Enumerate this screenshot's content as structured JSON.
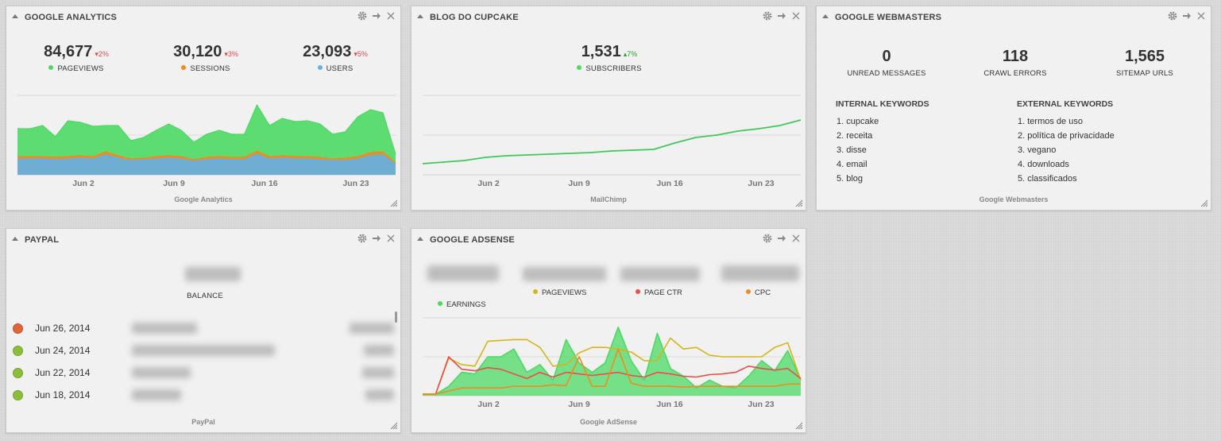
{
  "colors": {
    "green": "#4cd964",
    "green_line": "#3ec95a",
    "blue": "#62b1e5",
    "orange": "#f38a1e",
    "red": "#ef4b4b",
    "yellow": "#d4b51b",
    "pp_orange": "#e2633a",
    "pp_green": "#8bbf3a"
  },
  "icons": {
    "collapse": "triangle-up-icon",
    "settings": "gear-icon",
    "move": "arrow-right-icon",
    "close": "close-icon",
    "resize": "resize-handle-icon"
  },
  "analytics": {
    "title": "GOOGLE ANALYTICS",
    "metrics": [
      {
        "value": "84,677",
        "change": "2%",
        "dir": "down",
        "label": "PAGEVIEWS",
        "color": "#4cd964"
      },
      {
        "value": "30,120",
        "change": "3%",
        "dir": "down",
        "label": "SESSIONS",
        "color": "#f38a1e"
      },
      {
        "value": "23,093",
        "change": "5%",
        "dir": "down",
        "label": "USERS",
        "color": "#62b1e5"
      }
    ],
    "source": "Google Analytics"
  },
  "blog": {
    "title": "BLOG DO CUPCAKE",
    "metric": {
      "value": "1,531",
      "change": "7%",
      "dir": "up",
      "label": "SUBSCRIBERS",
      "color": "#4cd964"
    },
    "source": "MailChimp"
  },
  "webmasters": {
    "title": "GOOGLE WEBMASTERS",
    "stats": [
      {
        "value": "0",
        "label": "UNREAD MESSAGES"
      },
      {
        "value": "118",
        "label": "CRAWL ERRORS"
      },
      {
        "value": "1,565",
        "label": "SITEMAP URLS"
      }
    ],
    "internal_title": "INTERNAL KEYWORDS",
    "internal": [
      "1. cupcake",
      "2. receita",
      "3. disse",
      "4. email",
      "5. blog"
    ],
    "external_title": "EXTERNAL KEYWORDS",
    "external": [
      "1. termos de uso",
      "2. política de privacidade",
      "3. vegano",
      "4. downloads",
      "5. classificados"
    ],
    "source": "Google Webmasters"
  },
  "paypal": {
    "title": "PAYPAL",
    "balance_label": "BALANCE",
    "transactions": [
      {
        "date": "Jun 26, 2014",
        "status": "#e2633a"
      },
      {
        "date": "Jun 24, 2014",
        "status": "#8bbf3a"
      },
      {
        "date": "Jun 22, 2014",
        "status": "#8bbf3a"
      },
      {
        "date": "Jun 18, 2014",
        "status": "#8bbf3a"
      }
    ],
    "source": "PayPal"
  },
  "adsense": {
    "title": "GOOGLE ADSENSE",
    "metrics": [
      {
        "label": "EARNINGS",
        "color": "#4cd964"
      },
      {
        "label": "PAGEVIEWS",
        "color": "#d4b51b"
      },
      {
        "label": "PAGE CTR",
        "color": "#ef4b4b"
      },
      {
        "label": "CPC",
        "color": "#f38a1e"
      }
    ],
    "source": "Google AdSense"
  },
  "chart_data": [
    {
      "type": "area",
      "chart": "analytics",
      "x_ticks": [
        "Jun 2",
        "Jun 9",
        "Jun 16",
        "Jun 23"
      ],
      "series": [
        {
          "name": "PAGEVIEWS",
          "color": "#4cd964",
          "values": [
            0.58,
            0.58,
            0.62,
            0.48,
            0.68,
            0.66,
            0.61,
            0.62,
            0.62,
            0.43,
            0.47,
            0.56,
            0.64,
            0.56,
            0.41,
            0.51,
            0.56,
            0.51,
            0.51,
            0.88,
            0.62,
            0.71,
            0.67,
            0.68,
            0.64,
            0.51,
            0.54,
            0.73,
            0.82,
            0.78,
            0.26
          ]
        },
        {
          "name": "SESSIONS",
          "color": "#f38a1e",
          "values": [
            0.23,
            0.23,
            0.23,
            0.22,
            0.23,
            0.24,
            0.23,
            0.29,
            0.24,
            0.2,
            0.21,
            0.23,
            0.24,
            0.23,
            0.19,
            0.22,
            0.23,
            0.22,
            0.22,
            0.3,
            0.23,
            0.24,
            0.23,
            0.23,
            0.22,
            0.2,
            0.21,
            0.23,
            0.28,
            0.29,
            0.15
          ]
        },
        {
          "name": "USERS",
          "color": "#62b1e5",
          "values": [
            0.2,
            0.2,
            0.2,
            0.19,
            0.2,
            0.21,
            0.2,
            0.25,
            0.21,
            0.18,
            0.19,
            0.2,
            0.21,
            0.2,
            0.17,
            0.19,
            0.2,
            0.19,
            0.19,
            0.26,
            0.2,
            0.21,
            0.2,
            0.2,
            0.19,
            0.18,
            0.18,
            0.2,
            0.24,
            0.25,
            0.13
          ]
        }
      ]
    },
    {
      "type": "line",
      "chart": "blog",
      "x_ticks": [
        "Jun 2",
        "Jun 9",
        "Jun 16",
        "Jun 23"
      ],
      "series": [
        {
          "name": "SUBSCRIBERS",
          "color": "#3ec95a",
          "values": [
            0.14,
            0.16,
            0.18,
            0.22,
            0.24,
            0.25,
            0.26,
            0.27,
            0.28,
            0.3,
            0.31,
            0.32,
            0.4,
            0.47,
            0.5,
            0.55,
            0.58,
            0.62,
            0.69
          ]
        }
      ]
    },
    {
      "type": "line",
      "chart": "adsense",
      "x_ticks": [
        "Jun 2",
        "Jun 9",
        "Jun 16",
        "Jun 23"
      ],
      "series": [
        {
          "name": "EARNINGS",
          "color": "#4cd964",
          "area": true,
          "values": [
            0.02,
            0.02,
            0.12,
            0.3,
            0.28,
            0.5,
            0.5,
            0.6,
            0.3,
            0.4,
            0.2,
            0.72,
            0.42,
            0.3,
            0.42,
            0.88,
            0.45,
            0.2,
            0.8,
            0.35,
            0.25,
            0.1,
            0.2,
            0.12,
            0.1,
            0.25,
            0.45,
            0.32,
            0.58,
            0.2
          ]
        },
        {
          "name": "PAGEVIEWS",
          "color": "#d4b51b",
          "values": [
            0.02,
            0.02,
            0.48,
            0.4,
            0.38,
            0.7,
            0.71,
            0.72,
            0.72,
            0.62,
            0.38,
            0.4,
            0.55,
            0.62,
            0.62,
            0.6,
            0.56,
            0.45,
            0.45,
            0.74,
            0.6,
            0.62,
            0.52,
            0.5,
            0.5,
            0.5,
            0.5,
            0.62,
            0.68,
            0.2
          ]
        },
        {
          "name": "PAGE CTR",
          "color": "#ef4b4b",
          "values": [
            0.02,
            0.02,
            0.5,
            0.34,
            0.32,
            0.36,
            0.34,
            0.28,
            0.22,
            0.3,
            0.24,
            0.3,
            0.28,
            0.26,
            0.28,
            0.3,
            0.26,
            0.24,
            0.3,
            0.28,
            0.25,
            0.24,
            0.27,
            0.28,
            0.3,
            0.38,
            0.35,
            0.33,
            0.35,
            0.22
          ]
        },
        {
          "name": "CPC",
          "color": "#f38a1e",
          "values": [
            0.02,
            0.02,
            0.06,
            0.1,
            0.1,
            0.1,
            0.1,
            0.12,
            0.12,
            0.12,
            0.14,
            0.13,
            0.5,
            0.12,
            0.12,
            0.6,
            0.16,
            0.12,
            0.12,
            0.12,
            0.11,
            0.12,
            0.12,
            0.12,
            0.12,
            0.12,
            0.12,
            0.12,
            0.15,
            0.15
          ]
        }
      ]
    }
  ]
}
